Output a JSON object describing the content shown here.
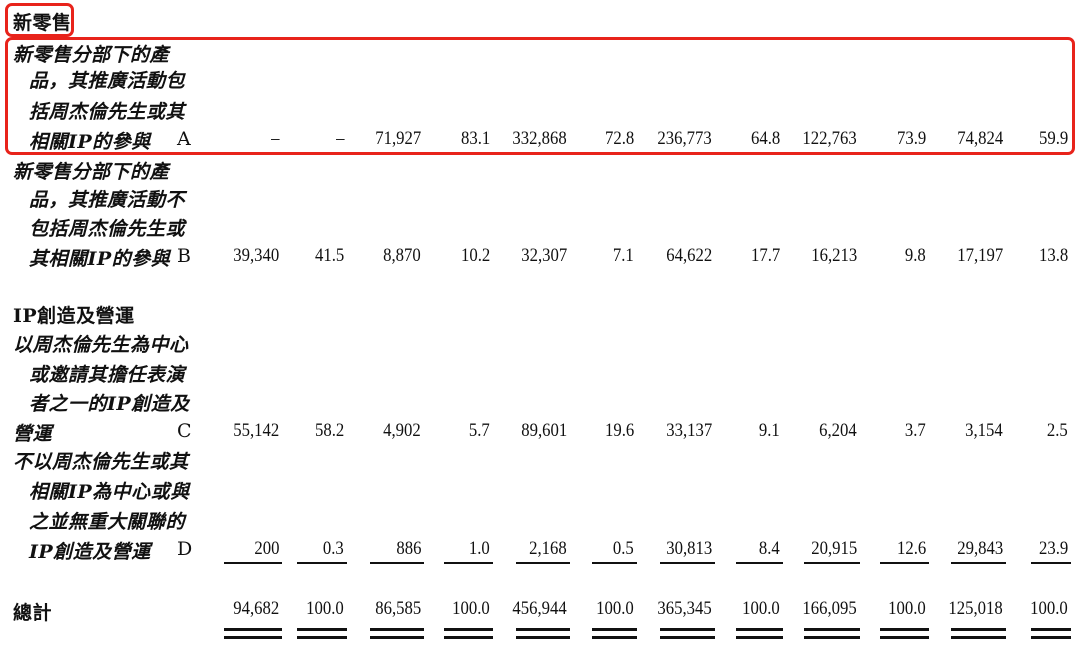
{
  "section_title": "新零售",
  "rows": [
    {
      "label_lines": [
        "新零售分部下的產",
        "品，其推廣活動包",
        "括周杰倫先生或其",
        "相關IP的參與"
      ],
      "code": "A",
      "values": [
        "–",
        "–",
        "71,927",
        "83.1",
        "332,868",
        "72.8",
        "236,773",
        "64.8",
        "122,763",
        "73.9",
        "74,824",
        "59.9"
      ]
    },
    {
      "label_lines": [
        "新零售分部下的產",
        "品，其推廣活動不",
        "包括周杰倫先生或",
        "其相關IP的參與"
      ],
      "code": "B",
      "values": [
        "39,340",
        "41.5",
        "8,870",
        "10.2",
        "32,307",
        "7.1",
        "64,622",
        "17.7",
        "16,213",
        "9.8",
        "17,197",
        "13.8"
      ]
    },
    {
      "heading": "IP創造及營運",
      "label_lines": [
        "以周杰倫先生為中心",
        "或邀請其擔任表演",
        "者之一的IP創造及",
        "營運"
      ],
      "code": "C",
      "values": [
        "55,142",
        "58.2",
        "4,902",
        "5.7",
        "89,601",
        "19.6",
        "33,137",
        "9.1",
        "6,204",
        "3.7",
        "3,154",
        "2.5"
      ]
    },
    {
      "label_lines": [
        "不以周杰倫先生或其",
        "相關IP為中心或與",
        "之並無重大關聯的",
        "IP創造及營運"
      ],
      "code": "D",
      "values": [
        "200",
        "0.3",
        "886",
        "1.0",
        "2,168",
        "0.5",
        "30,813",
        "8.4",
        "20,915",
        "12.6",
        "29,843",
        "23.9"
      ]
    }
  ],
  "total": {
    "label": "總計",
    "values": [
      "94,682",
      "100.0",
      "86,585",
      "100.0",
      "456,944",
      "100.0",
      "365,345",
      "100.0",
      "166,095",
      "100.0",
      "125,018",
      "100.0"
    ]
  },
  "highlight_color": "#e8231b"
}
